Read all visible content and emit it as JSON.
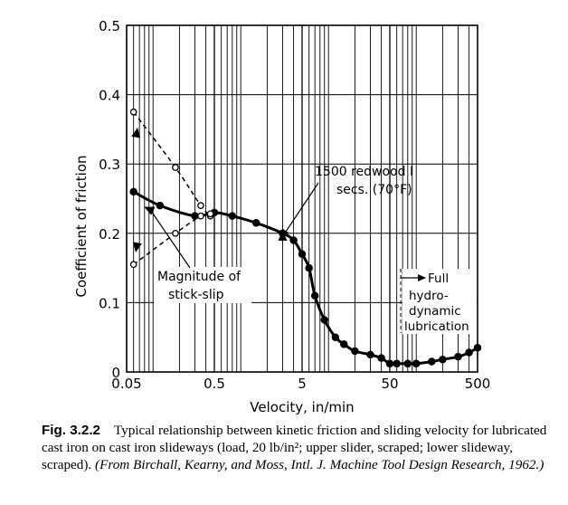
{
  "chart_data": {
    "type": "line",
    "xlabel": "Velocity, in/min",
    "ylabel": "Coefficient of friction",
    "x_scale": "log",
    "xlim": [
      0.05,
      500
    ],
    "ylim": [
      0,
      0.5
    ],
    "x_ticks": [
      0.05,
      0.5,
      5,
      50,
      500
    ],
    "x_tick_labels": [
      "0.05",
      "0.5",
      "5",
      "50",
      "500"
    ],
    "y_ticks": [
      0,
      0.1,
      0.2,
      0.3,
      0.4,
      0.5
    ],
    "y_tick_labels": [
      "0",
      "0.1",
      "0.2",
      "0.3",
      "0.4",
      "0.5"
    ],
    "grid": true,
    "series": [
      {
        "style": "solid",
        "marker": "filled-circle",
        "x": [
          0.06,
          0.12,
          0.3,
          0.5,
          0.8,
          1.5,
          3,
          4,
          5,
          6,
          7,
          9,
          12,
          15,
          20,
          30,
          40,
          50,
          60,
          80,
          100,
          150,
          200,
          300,
          400,
          500
        ],
        "y": [
          0.26,
          0.24,
          0.225,
          0.23,
          0.225,
          0.215,
          0.2,
          0.19,
          0.17,
          0.15,
          0.11,
          0.075,
          0.05,
          0.04,
          0.03,
          0.025,
          0.02,
          0.012,
          0.012,
          0.012,
          0.012,
          0.015,
          0.018,
          0.022,
          0.028,
          0.035
        ]
      },
      {
        "style": "dashed",
        "marker": "open-circle",
        "x": [
          0.06,
          0.18,
          0.35,
          0.45
        ],
        "y": [
          0.375,
          0.295,
          0.24,
          0.225
        ]
      },
      {
        "style": "dashed",
        "marker": "open-circle",
        "x": [
          0.06,
          0.18,
          0.35,
          0.45
        ],
        "y": [
          0.155,
          0.2,
          0.225,
          0.228
        ]
      }
    ],
    "annotations": [
      {
        "text": "1500 redwood I",
        "line2": "secs. (70°F)"
      },
      {
        "text": "Magnitude of",
        "line2": "stick-slip"
      },
      {
        "text": "Full",
        "line2": "hydro-",
        "line3": "dynamic",
        "line4": "lubrication"
      }
    ]
  },
  "caption": {
    "fig_label": "Fig. 3.2.2",
    "text": "Typical relationship between kinetic friction and sliding velocity for lubricated cast iron on cast iron slideways (load, 20 lb/in²; upper slider, scraped; lower slideway, scraped).",
    "source": "(From Birchall, Kearny, and Moss, Intl. J. Machine Tool Design Research, 1962.)"
  }
}
